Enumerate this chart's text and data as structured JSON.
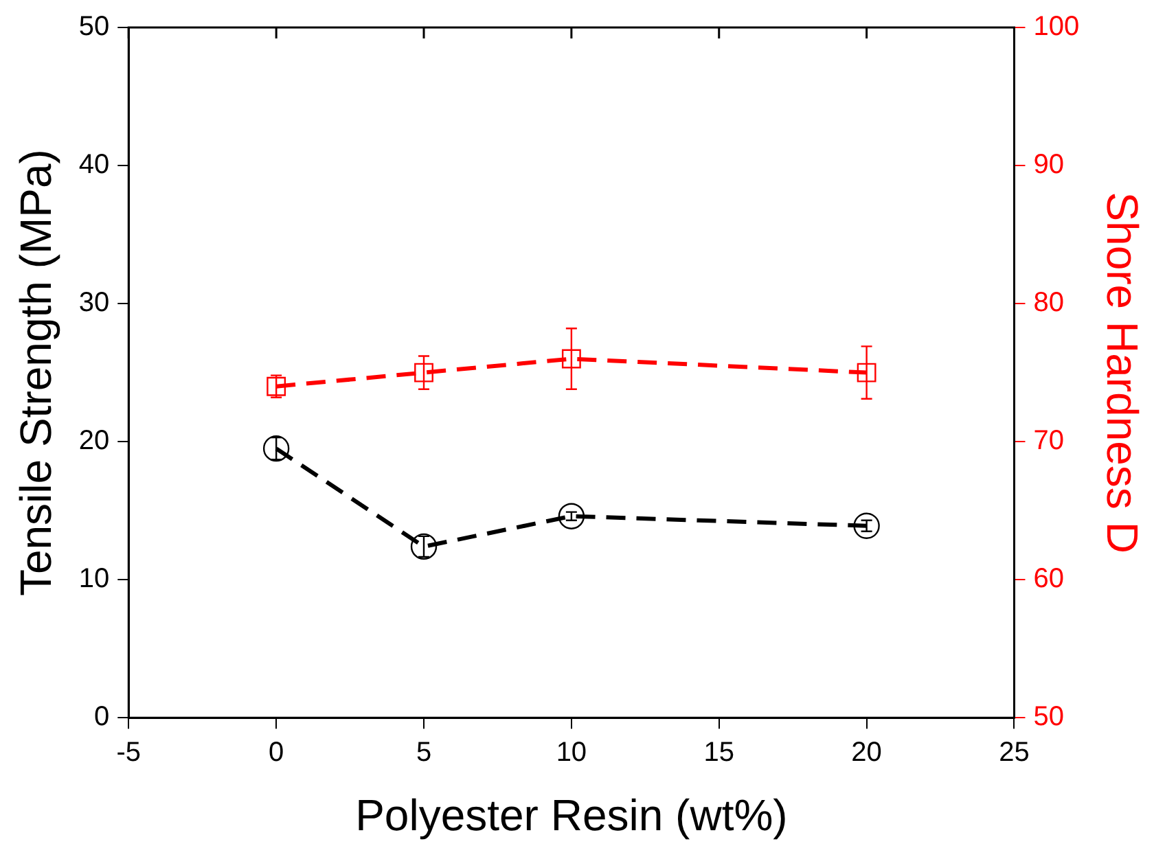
{
  "chart_data": {
    "type": "line",
    "xlabel": "Polyester Resin (wt%)",
    "ylabel": "Tensile Strength (MPa)",
    "y2label": "Shore Hardness D",
    "x": [
      0,
      5,
      10,
      20
    ],
    "series": [
      {
        "color": "#000000",
        "values": [
          19.5,
          12.4,
          14.6,
          13.9
        ],
        "errors": [
          0.8,
          0.75,
          0.3,
          0.4
        ],
        "marker": "circle"
      },
      {
        "color": "#ff0000",
        "values": [
          74,
          75,
          76,
          75
        ],
        "errors": [
          0.8,
          1.2,
          2.2,
          1.9
        ],
        "marker": "square",
        "axis": "y2"
      }
    ],
    "xlim": [
      -5,
      25
    ],
    "xticks": [
      -5,
      0,
      5,
      10,
      15,
      20,
      25
    ],
    "ylim": [
      0,
      50
    ],
    "yticks": [
      0,
      10,
      20,
      30,
      40,
      50
    ],
    "y2lim": [
      50,
      100
    ],
    "y2ticks": [
      50,
      60,
      70,
      80,
      90,
      100
    ],
    "line_style": "dashed",
    "grid": false,
    "legend": false
  }
}
